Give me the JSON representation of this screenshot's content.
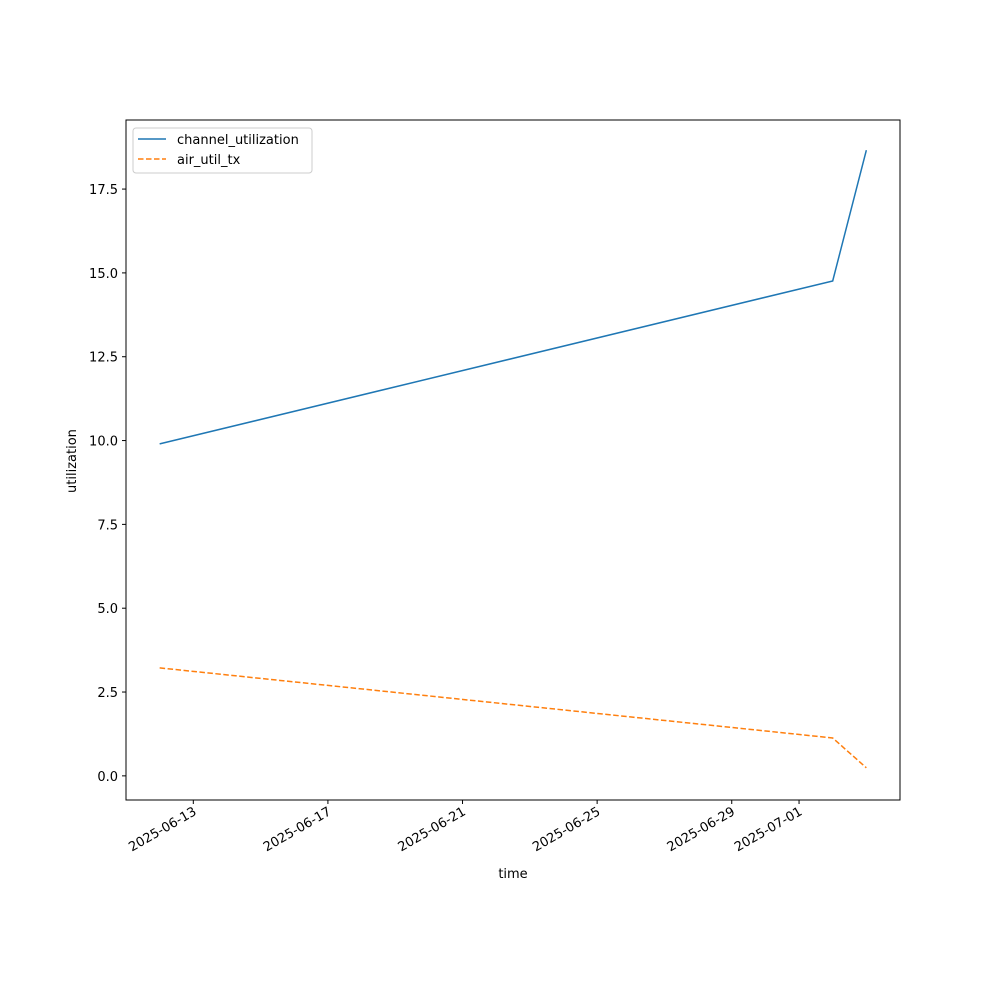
{
  "chart_data": {
    "type": "line",
    "xlabel": "time",
    "ylabel": "utilization",
    "x": [
      "2025-06-12",
      "2025-07-02",
      "2025-07-03"
    ],
    "series": [
      {
        "name": "channel_utilization",
        "color": "#1f77b4",
        "linestyle": "solid",
        "values": [
          9.9,
          14.76,
          18.66
        ]
      },
      {
        "name": "air_util_tx",
        "color": "#ff7f0e",
        "linestyle": "dashed",
        "values": [
          3.22,
          1.13,
          0.24
        ]
      }
    ],
    "xlim": [
      "2025-06-11",
      "2025-07-04"
    ],
    "xticks": [
      "2025-06-13",
      "2025-06-17",
      "2025-06-21",
      "2025-06-25",
      "2025-06-29",
      "2025-07-01"
    ],
    "ylim": [
      -0.72,
      19.56
    ],
    "yticks": [
      {
        "value": 0,
        "label": "0.0"
      },
      {
        "value": 2.5,
        "label": "2.5"
      },
      {
        "value": 5,
        "label": "5.0"
      },
      {
        "value": 7.5,
        "label": "7.5"
      },
      {
        "value": 10,
        "label": "10.0"
      },
      {
        "value": 12.5,
        "label": "12.5"
      },
      {
        "value": 15,
        "label": "15.0"
      },
      {
        "value": 17.5,
        "label": "17.5"
      }
    ],
    "legend": "upper left"
  }
}
